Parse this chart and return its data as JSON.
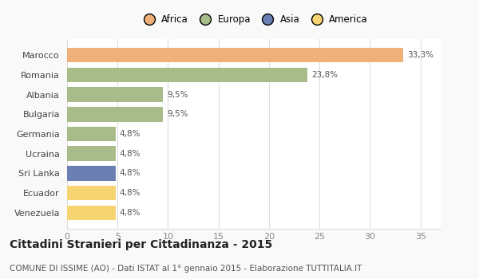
{
  "countries": [
    "Venezuela",
    "Ecuador",
    "Sri Lanka",
    "Ucraina",
    "Germania",
    "Bulgaria",
    "Albania",
    "Romania",
    "Marocco"
  ],
  "values": [
    4.8,
    4.8,
    4.8,
    4.8,
    4.8,
    9.5,
    9.5,
    23.8,
    33.3
  ],
  "labels": [
    "4,8%",
    "4,8%",
    "4,8%",
    "4,8%",
    "4,8%",
    "9,5%",
    "9,5%",
    "23,8%",
    "33,3%"
  ],
  "label_inside": [
    false,
    false,
    false,
    false,
    false,
    false,
    false,
    false,
    false
  ],
  "colors": [
    "#f7d472",
    "#f7d472",
    "#6b7fb5",
    "#a8bc8a",
    "#a8bc8a",
    "#a8bc8a",
    "#a8bc8a",
    "#a8bc8a",
    "#f0b07a"
  ],
  "legend": [
    {
      "label": "Africa",
      "color": "#f0b07a"
    },
    {
      "label": "Europa",
      "color": "#a8bc8a"
    },
    {
      "label": "Asia",
      "color": "#6b7fb5"
    },
    {
      "label": "America",
      "color": "#f7d472"
    }
  ],
  "xlim": [
    0,
    37
  ],
  "xticks": [
    0,
    5,
    10,
    15,
    20,
    25,
    30,
    35
  ],
  "title": "Cittadini Stranieri per Cittadinanza - 2015",
  "subtitle": "COMUNE DI ISSIME (AO) - Dati ISTAT al 1° gennaio 2015 - Elaborazione TUTTITALIA.IT",
  "title_fontsize": 10,
  "subtitle_fontsize": 7.5,
  "background_color": "#f9f9f9",
  "plot_background": "#ffffff",
  "bar_height": 0.75,
  "grid_color": "#dddddd"
}
